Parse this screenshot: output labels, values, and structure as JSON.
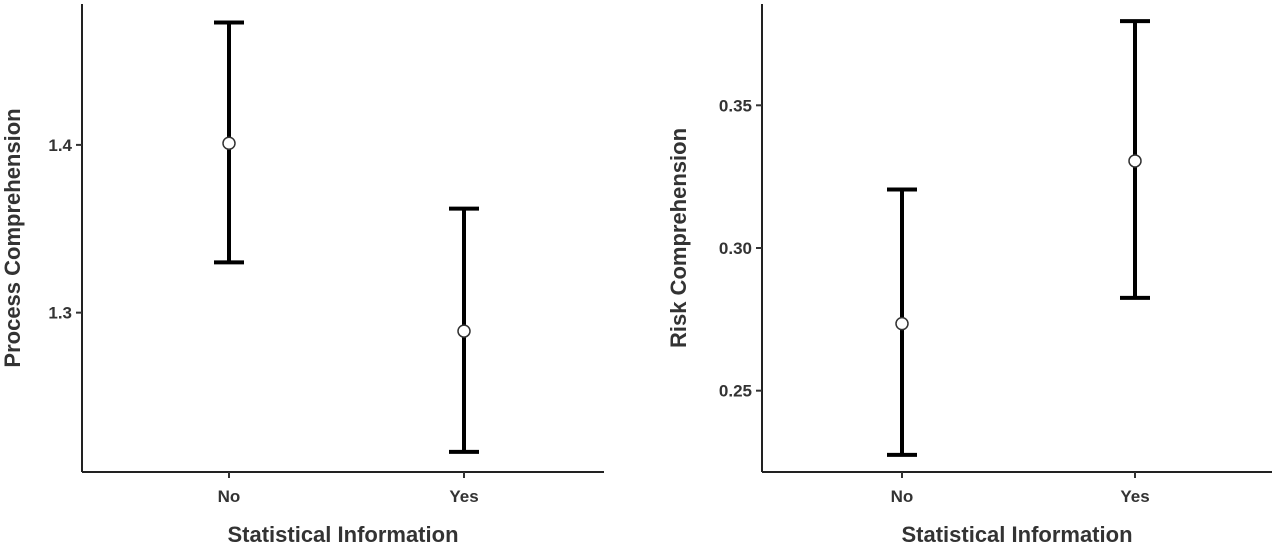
{
  "chart_data": [
    {
      "type": "scatter",
      "subtype": "point-errorbar",
      "title": "",
      "xlabel": "Statistical Information",
      "ylabel": "Process Comprehension",
      "categories": [
        "No",
        "Yes"
      ],
      "points": [
        {
          "x": "No",
          "y": 1.401,
          "ymin": 1.33,
          "ymax": 1.473
        },
        {
          "x": "Yes",
          "y": 1.289,
          "ymin": 1.217,
          "ymax": 1.362
        }
      ],
      "yticks": [
        1.3,
        1.4
      ],
      "ytick_labels": [
        "1.3",
        "1.4"
      ],
      "ylim": [
        1.205,
        1.484
      ],
      "grid": false,
      "marker_color": "#ffffff",
      "line_color": "#000000"
    },
    {
      "type": "scatter",
      "subtype": "point-errorbar",
      "title": "",
      "xlabel": "Statistical Information",
      "ylabel": "Risk Comprehension",
      "categories": [
        "No",
        "Yes"
      ],
      "points": [
        {
          "x": "No",
          "y": 0.2735,
          "ymin": 0.2275,
          "ymax": 0.3205
        },
        {
          "x": "Yes",
          "y": 0.3305,
          "ymin": 0.2825,
          "ymax": 0.3795
        }
      ],
      "yticks": [
        0.25,
        0.3,
        0.35
      ],
      "ytick_labels": [
        "0.25",
        "0.30",
        "0.35"
      ],
      "ylim": [
        0.2215,
        0.3855
      ],
      "grid": false,
      "marker_color": "#ffffff",
      "line_color": "#000000"
    }
  ]
}
